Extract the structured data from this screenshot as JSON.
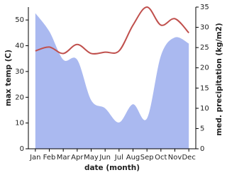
{
  "chart_data": {
    "type": "line-area",
    "categories": [
      "Jan",
      "Feb",
      "Mar",
      "Apr",
      "May",
      "Jun",
      "Jul",
      "Aug",
      "Sep",
      "Oct",
      "Nov",
      "Dec"
    ],
    "x_label": "date (month)",
    "y_label": "max temp (C)",
    "y2_label": "med. precipitation (kg/m2)",
    "ylim": [
      0,
      55
    ],
    "yticks": [
      0,
      10,
      20,
      30,
      40,
      50
    ],
    "y2lim": [
      0,
      35
    ],
    "y2ticks": [
      0,
      5,
      10,
      15,
      20,
      25,
      30,
      35
    ],
    "series": [
      {
        "name": "max temp",
        "color": "#c0504d",
        "values": [
          38,
          39.5,
          37,
          40.5,
          37,
          37.5,
          38,
          48,
          55,
          48,
          50.5,
          45
        ]
      },
      {
        "name": "med. precipitation",
        "color": "#aab9f0",
        "axis": "y2",
        "values": [
          33.5,
          29,
          22,
          22,
          12,
          10,
          6.5,
          11,
          7.5,
          23,
          27.5,
          26
        ]
      }
    ]
  }
}
